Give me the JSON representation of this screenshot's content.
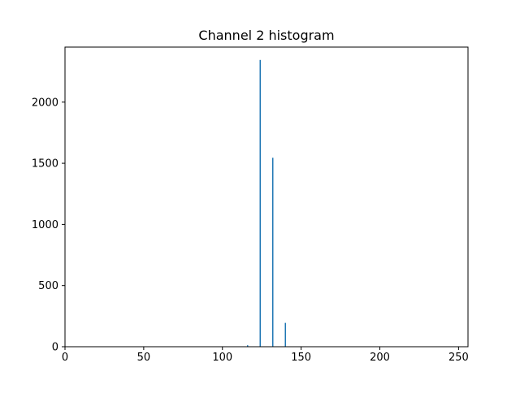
{
  "chart_data": {
    "type": "bar",
    "title": "Channel 2 histogram",
    "xlabel": "",
    "ylabel": "",
    "xlim": [
      0,
      256
    ],
    "ylim": [
      0,
      2450
    ],
    "x_ticks": [
      0,
      50,
      100,
      150,
      200,
      250
    ],
    "y_ticks": [
      0,
      500,
      1000,
      1500,
      2000
    ],
    "grid": false,
    "bar_color": "#1f77b4",
    "bins": [
      {
        "x": 116,
        "value": 12
      },
      {
        "x": 124,
        "value": 2345
      },
      {
        "x": 132,
        "value": 1545
      },
      {
        "x": 140,
        "value": 195
      }
    ]
  }
}
